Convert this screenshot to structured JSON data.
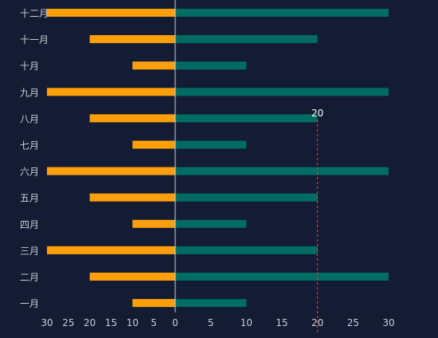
{
  "chart_data": {
    "type": "bar",
    "orientation": "horizontal",
    "layout": "diverging",
    "categories": [
      "一月",
      "二月",
      "三月",
      "四月",
      "五月",
      "六月",
      "七月",
      "八月",
      "九月",
      "十月",
      "十一月",
      "十二月"
    ],
    "series": [
      {
        "side": "left",
        "values": [
          10,
          20,
          30,
          10,
          20,
          30,
          10,
          20,
          30,
          10,
          20,
          30
        ]
      },
      {
        "side": "right",
        "values": [
          10,
          30,
          20,
          10,
          20,
          30,
          10,
          20,
          30,
          10,
          20,
          30
        ]
      }
    ],
    "x_ticks_left": [
      "30",
      "25",
      "20",
      "15",
      "10",
      "5"
    ],
    "x_ticks_right": [
      "0",
      "5",
      "10",
      "15",
      "20",
      "25",
      "30"
    ],
    "xlim": [
      -30,
      30
    ],
    "reference_line": {
      "value": 20,
      "label": "20",
      "color": "#d9534f"
    },
    "grid": false,
    "colors": {
      "background": "#131c33",
      "left_bar": "#ff9f0a",
      "right_bar": "#006c62",
      "axis_line": "#c8ccd4",
      "label_text": "#c9ccd3"
    }
  }
}
